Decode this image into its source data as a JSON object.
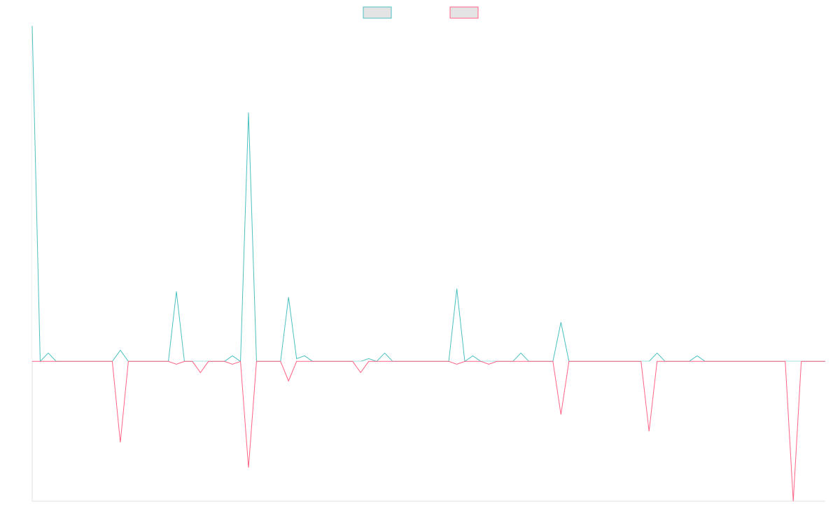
{
  "chart_data": {
    "type": "line",
    "title": "",
    "xlabel": "",
    "ylabel": "",
    "ylim": [
      -50,
      120
    ],
    "grid": false,
    "legend_position": "top-center",
    "x_count": 100,
    "series": [
      {
        "color": "#4bc0c0",
        "values": [
          120,
          0,
          3,
          0,
          0,
          0,
          0,
          0,
          0,
          0,
          0,
          4,
          0,
          0,
          0,
          0,
          0,
          0,
          25,
          0,
          0,
          0,
          0,
          0,
          0,
          2,
          0,
          89,
          0,
          0,
          0,
          0,
          23,
          1,
          2,
          0,
          0,
          0,
          0,
          0,
          0,
          0,
          1,
          0,
          3,
          0,
          0,
          0,
          0,
          0,
          0,
          0,
          0,
          26,
          0,
          2,
          0,
          0,
          0,
          0,
          0,
          3,
          0,
          0,
          0,
          0,
          14,
          0,
          0,
          0,
          0,
          0,
          0,
          0,
          0,
          0,
          0,
          0,
          3,
          0,
          0,
          0,
          0,
          2,
          0,
          0,
          0,
          0,
          0,
          0,
          0,
          0,
          0,
          0,
          0,
          0,
          0,
          0,
          0,
          0
        ]
      },
      {
        "color": "#ff6384",
        "values": [
          0,
          0,
          0,
          0,
          0,
          0,
          0,
          0,
          0,
          0,
          0,
          -29,
          0,
          0,
          0,
          0,
          0,
          0,
          -1,
          0,
          0,
          -4,
          0,
          0,
          0,
          -1,
          0,
          -38,
          0,
          0,
          0,
          0,
          -7,
          0,
          0,
          0,
          0,
          0,
          0,
          0,
          0,
          -4,
          0,
          0,
          0,
          0,
          0,
          0,
          0,
          0,
          0,
          0,
          0,
          -1,
          0,
          0,
          0,
          -1,
          0,
          0,
          0,
          0,
          0,
          0,
          0,
          0,
          -19,
          0,
          0,
          0,
          0,
          0,
          0,
          0,
          0,
          0,
          0,
          -25,
          0,
          0,
          0,
          0,
          0,
          0,
          0,
          0,
          0,
          0,
          0,
          0,
          0,
          0,
          0,
          0,
          0,
          -50,
          0,
          0,
          0,
          0
        ]
      }
    ]
  }
}
